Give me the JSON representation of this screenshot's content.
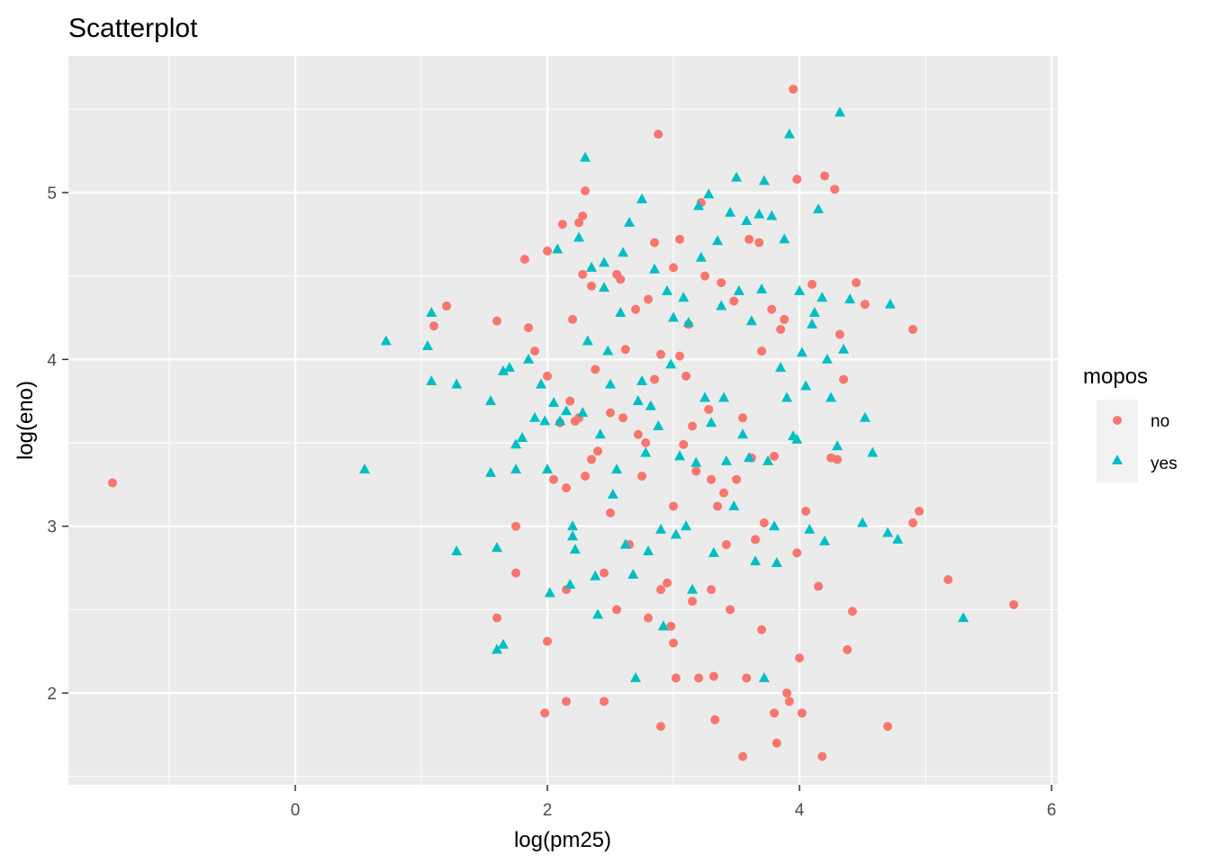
{
  "chart_data": {
    "type": "scatter",
    "title": "Scatterplot",
    "xlabel": "log(pm25)",
    "ylabel": "log(eno)",
    "xlim": [
      -1.8,
      6.05
    ],
    "ylim": [
      1.45,
      5.82
    ],
    "x_ticks": [
      0,
      2,
      4,
      6
    ],
    "y_ticks": [
      2,
      3,
      4,
      5
    ],
    "x_tick_labels": [
      "0",
      "2",
      "4",
      "6"
    ],
    "y_tick_labels": [
      "2",
      "3",
      "4",
      "5"
    ],
    "grid": true,
    "panel_background": "#ebebeb",
    "legend": {
      "title": "mopos",
      "placement": "right",
      "entries": [
        {
          "label": "no",
          "shape": "circle",
          "color": "#f8766d"
        },
        {
          "label": "yes",
          "shape": "triangle",
          "color": "#00bfc4"
        }
      ]
    },
    "series": [
      {
        "name": "no",
        "shape": "circle",
        "color": "#f8766d",
        "points": [
          [
            -1.45,
            3.26
          ],
          [
            1.1,
            4.2
          ],
          [
            1.2,
            4.32
          ],
          [
            1.6,
            4.23
          ],
          [
            1.6,
            2.45
          ],
          [
            1.75,
            3.0
          ],
          [
            1.75,
            2.72
          ],
          [
            1.82,
            4.6
          ],
          [
            1.85,
            4.19
          ],
          [
            1.9,
            4.05
          ],
          [
            1.98,
            1.88
          ],
          [
            2.0,
            3.9
          ],
          [
            2.0,
            2.31
          ],
          [
            2.0,
            4.65
          ],
          [
            2.05,
            3.28
          ],
          [
            2.1,
            3.62
          ],
          [
            2.12,
            4.81
          ],
          [
            2.15,
            3.23
          ],
          [
            2.15,
            2.62
          ],
          [
            2.15,
            1.95
          ],
          [
            2.18,
            3.75
          ],
          [
            2.2,
            4.24
          ],
          [
            2.22,
            3.63
          ],
          [
            2.25,
            4.82
          ],
          [
            2.25,
            3.65
          ],
          [
            2.28,
            4.86
          ],
          [
            2.28,
            4.51
          ],
          [
            2.3,
            5.01
          ],
          [
            2.3,
            3.3
          ],
          [
            2.35,
            4.44
          ],
          [
            2.35,
            3.4
          ],
          [
            2.38,
            3.94
          ],
          [
            2.4,
            3.45
          ],
          [
            2.45,
            2.72
          ],
          [
            2.45,
            1.95
          ],
          [
            2.5,
            3.68
          ],
          [
            2.5,
            3.08
          ],
          [
            2.55,
            4.51
          ],
          [
            2.55,
            2.5
          ],
          [
            2.58,
            4.48
          ],
          [
            2.6,
            3.65
          ],
          [
            2.62,
            4.06
          ],
          [
            2.65,
            2.89
          ],
          [
            2.7,
            4.3
          ],
          [
            2.72,
            3.55
          ],
          [
            2.75,
            3.3
          ],
          [
            2.78,
            3.5
          ],
          [
            2.8,
            4.36
          ],
          [
            2.8,
            2.45
          ],
          [
            2.85,
            4.7
          ],
          [
            2.85,
            3.88
          ],
          [
            2.88,
            5.35
          ],
          [
            2.9,
            4.03
          ],
          [
            2.9,
            2.62
          ],
          [
            2.9,
            1.8
          ],
          [
            2.95,
            2.66
          ],
          [
            2.98,
            2.4
          ],
          [
            3.0,
            4.55
          ],
          [
            3.0,
            3.12
          ],
          [
            3.0,
            2.3
          ],
          [
            3.02,
            2.09
          ],
          [
            3.05,
            4.72
          ],
          [
            3.05,
            4.02
          ],
          [
            3.08,
            3.49
          ],
          [
            3.1,
            3.9
          ],
          [
            3.12,
            4.21
          ],
          [
            3.15,
            3.6
          ],
          [
            3.15,
            2.55
          ],
          [
            3.18,
            3.33
          ],
          [
            3.2,
            2.09
          ],
          [
            3.22,
            4.94
          ],
          [
            3.25,
            4.5
          ],
          [
            3.28,
            3.7
          ],
          [
            3.3,
            3.28
          ],
          [
            3.3,
            2.62
          ],
          [
            3.32,
            2.1
          ],
          [
            3.33,
            1.84
          ],
          [
            3.35,
            3.12
          ],
          [
            3.38,
            4.46
          ],
          [
            3.4,
            3.2
          ],
          [
            3.42,
            2.89
          ],
          [
            3.45,
            2.5
          ],
          [
            3.48,
            4.35
          ],
          [
            3.5,
            3.28
          ],
          [
            3.55,
            3.65
          ],
          [
            3.55,
            1.62
          ],
          [
            3.58,
            2.09
          ],
          [
            3.6,
            4.72
          ],
          [
            3.62,
            3.41
          ],
          [
            3.65,
            2.92
          ],
          [
            3.68,
            4.7
          ],
          [
            3.7,
            4.05
          ],
          [
            3.7,
            2.38
          ],
          [
            3.72,
            3.02
          ],
          [
            3.78,
            4.3
          ],
          [
            3.8,
            3.42
          ],
          [
            3.8,
            1.88
          ],
          [
            3.82,
            1.7
          ],
          [
            3.85,
            4.18
          ],
          [
            3.88,
            4.24
          ],
          [
            3.9,
            2.0
          ],
          [
            3.92,
            1.95
          ],
          [
            3.95,
            5.62
          ],
          [
            3.98,
            5.08
          ],
          [
            3.98,
            2.84
          ],
          [
            4.0,
            2.21
          ],
          [
            4.02,
            1.88
          ],
          [
            4.05,
            3.09
          ],
          [
            4.1,
            4.45
          ],
          [
            4.15,
            2.64
          ],
          [
            4.18,
            1.62
          ],
          [
            4.2,
            5.1
          ],
          [
            4.25,
            3.41
          ],
          [
            4.28,
            5.02
          ],
          [
            4.3,
            3.4
          ],
          [
            4.32,
            4.15
          ],
          [
            4.35,
            3.88
          ],
          [
            4.38,
            2.26
          ],
          [
            4.42,
            2.49
          ],
          [
            4.45,
            4.46
          ],
          [
            4.52,
            4.33
          ],
          [
            4.7,
            1.8
          ],
          [
            4.9,
            3.02
          ],
          [
            4.9,
            4.18
          ],
          [
            4.95,
            3.09
          ],
          [
            5.18,
            2.68
          ],
          [
            5.7,
            2.53
          ]
        ]
      },
      {
        "name": "yes",
        "shape": "triangle",
        "color": "#00bfc4",
        "points": [
          [
            0.55,
            3.34
          ],
          [
            0.72,
            4.11
          ],
          [
            1.05,
            4.08
          ],
          [
            1.08,
            4.28
          ],
          [
            1.08,
            3.87
          ],
          [
            1.28,
            2.85
          ],
          [
            1.28,
            3.85
          ],
          [
            1.55,
            3.32
          ],
          [
            1.55,
            3.75
          ],
          [
            1.6,
            2.26
          ],
          [
            1.6,
            2.87
          ],
          [
            1.65,
            2.29
          ],
          [
            1.65,
            3.93
          ],
          [
            1.7,
            3.95
          ],
          [
            1.75,
            3.49
          ],
          [
            1.75,
            3.34
          ],
          [
            1.8,
            3.53
          ],
          [
            1.85,
            4.0
          ],
          [
            1.9,
            3.65
          ],
          [
            1.95,
            3.85
          ],
          [
            1.98,
            3.63
          ],
          [
            2.0,
            3.34
          ],
          [
            2.02,
            2.6
          ],
          [
            2.05,
            3.74
          ],
          [
            2.08,
            4.66
          ],
          [
            2.1,
            3.63
          ],
          [
            2.15,
            3.69
          ],
          [
            2.18,
            2.65
          ],
          [
            2.2,
            3.0
          ],
          [
            2.2,
            2.94
          ],
          [
            2.22,
            2.86
          ],
          [
            2.25,
            4.73
          ],
          [
            2.28,
            3.68
          ],
          [
            2.3,
            5.21
          ],
          [
            2.32,
            4.11
          ],
          [
            2.35,
            4.55
          ],
          [
            2.38,
            2.7
          ],
          [
            2.4,
            2.47
          ],
          [
            2.42,
            3.55
          ],
          [
            2.45,
            4.58
          ],
          [
            2.45,
            4.43
          ],
          [
            2.48,
            4.05
          ],
          [
            2.5,
            3.85
          ],
          [
            2.52,
            3.19
          ],
          [
            2.55,
            3.34
          ],
          [
            2.58,
            4.28
          ],
          [
            2.6,
            4.64
          ],
          [
            2.62,
            2.89
          ],
          [
            2.65,
            4.82
          ],
          [
            2.68,
            2.71
          ],
          [
            2.7,
            2.09
          ],
          [
            2.72,
            3.75
          ],
          [
            2.75,
            4.96
          ],
          [
            2.75,
            3.87
          ],
          [
            2.78,
            3.44
          ],
          [
            2.8,
            2.85
          ],
          [
            2.82,
            3.72
          ],
          [
            2.85,
            4.54
          ],
          [
            2.88,
            3.6
          ],
          [
            2.9,
            2.98
          ],
          [
            2.92,
            2.4
          ],
          [
            2.95,
            4.41
          ],
          [
            2.98,
            3.97
          ],
          [
            3.0,
            4.25
          ],
          [
            3.02,
            2.95
          ],
          [
            3.05,
            3.42
          ],
          [
            3.08,
            4.37
          ],
          [
            3.1,
            3.0
          ],
          [
            3.12,
            4.22
          ],
          [
            3.15,
            2.62
          ],
          [
            3.18,
            3.38
          ],
          [
            3.2,
            4.92
          ],
          [
            3.22,
            4.61
          ],
          [
            3.25,
            3.77
          ],
          [
            3.28,
            4.99
          ],
          [
            3.3,
            3.62
          ],
          [
            3.32,
            2.84
          ],
          [
            3.35,
            4.71
          ],
          [
            3.38,
            4.32
          ],
          [
            3.4,
            3.77
          ],
          [
            3.42,
            3.39
          ],
          [
            3.45,
            4.88
          ],
          [
            3.48,
            3.12
          ],
          [
            3.5,
            5.09
          ],
          [
            3.52,
            4.41
          ],
          [
            3.55,
            3.55
          ],
          [
            3.58,
            4.83
          ],
          [
            3.6,
            3.41
          ],
          [
            3.62,
            4.23
          ],
          [
            3.65,
            2.79
          ],
          [
            3.68,
            4.87
          ],
          [
            3.7,
            4.42
          ],
          [
            3.72,
            5.07
          ],
          [
            3.72,
            2.09
          ],
          [
            3.75,
            3.39
          ],
          [
            3.78,
            4.86
          ],
          [
            3.8,
            3.0
          ],
          [
            3.82,
            2.78
          ],
          [
            3.85,
            3.95
          ],
          [
            3.88,
            4.72
          ],
          [
            3.9,
            3.77
          ],
          [
            3.92,
            5.35
          ],
          [
            3.95,
            3.54
          ],
          [
            3.98,
            3.52
          ],
          [
            4.0,
            4.41
          ],
          [
            4.02,
            4.04
          ],
          [
            4.05,
            3.84
          ],
          [
            4.08,
            2.98
          ],
          [
            4.1,
            4.21
          ],
          [
            4.12,
            4.28
          ],
          [
            4.15,
            4.9
          ],
          [
            4.18,
            4.37
          ],
          [
            4.2,
            2.91
          ],
          [
            4.22,
            4.0
          ],
          [
            4.25,
            3.77
          ],
          [
            4.3,
            3.48
          ],
          [
            4.32,
            5.48
          ],
          [
            4.35,
            4.06
          ],
          [
            4.4,
            4.36
          ],
          [
            4.5,
            3.02
          ],
          [
            4.52,
            3.65
          ],
          [
            4.58,
            3.44
          ],
          [
            4.7,
            2.96
          ],
          [
            4.72,
            4.33
          ],
          [
            4.78,
            2.92
          ],
          [
            5.3,
            2.45
          ]
        ]
      }
    ]
  }
}
